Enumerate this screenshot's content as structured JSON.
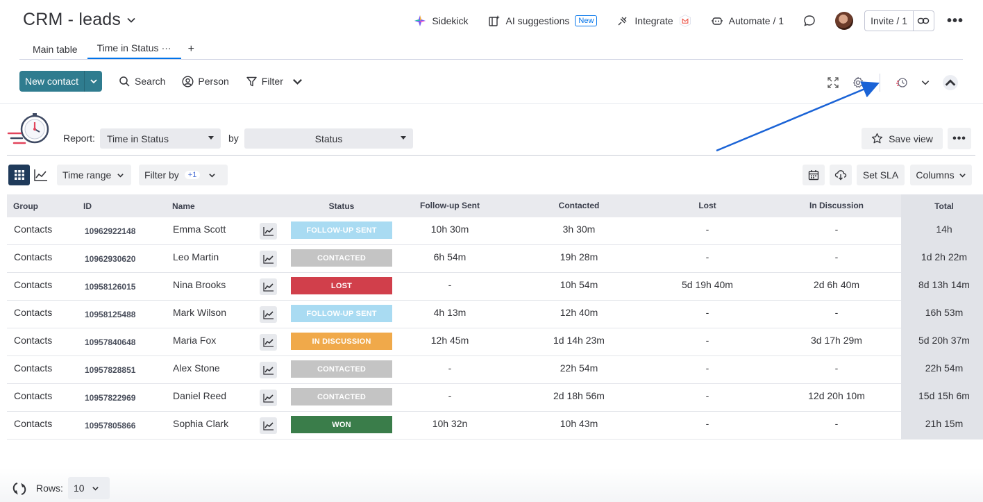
{
  "board": {
    "title": "CRM - leads"
  },
  "header": {
    "sidekick": "Sidekick",
    "ai_suggestions": "AI suggestions",
    "ai_badge": "New",
    "integrate": "Integrate",
    "automate": "Automate / 1",
    "invite": "Invite / 1"
  },
  "tabs": [
    {
      "label": "Main table"
    },
    {
      "label": "Time in Status",
      "dots": "···"
    }
  ],
  "tab_add": "+",
  "toolbar": {
    "new_contact": "New contact",
    "search": "Search",
    "person": "Person",
    "filter": "Filter"
  },
  "report": {
    "label": "Report:",
    "report_value": "Time in Status",
    "by_label": "by",
    "by_value": "Status",
    "save_view": "Save view"
  },
  "controls": {
    "time_range": "Time range",
    "filter_by": "Filter by",
    "filter_badge": "+1",
    "set_sla": "Set SLA",
    "columns": "Columns"
  },
  "table": {
    "columns": [
      "Group",
      "ID",
      "Name",
      "Status",
      "Follow-up Sent",
      "Contacted",
      "Lost",
      "In Discussion",
      "Total"
    ],
    "rows": [
      {
        "group": "Contacts",
        "id": "10962922148",
        "name": "Emma Scott",
        "status": "FOLLOW-UP SENT",
        "status_color": "#a9dbf2",
        "followup": "10h 30m",
        "contacted": "3h 30m",
        "lost": "-",
        "discussion": "-",
        "total": "14h"
      },
      {
        "group": "Contacts",
        "id": "10962930620",
        "name": "Leo Martin",
        "status": "CONTACTED",
        "status_color": "#c4c4c4",
        "followup": "6h 54m",
        "contacted": "19h 28m",
        "lost": "-",
        "discussion": "-",
        "total": "1d 2h 22m"
      },
      {
        "group": "Contacts",
        "id": "10958126015",
        "name": "Nina Brooks",
        "status": "LOST",
        "status_color": "#d13f4b",
        "followup": "-",
        "contacted": "10h 54m",
        "lost": "5d 19h 40m",
        "discussion": "2d 6h 40m",
        "total": "8d 13h 14m"
      },
      {
        "group": "Contacts",
        "id": "10958125488",
        "name": "Mark Wilson",
        "status": "FOLLOW-UP SENT",
        "status_color": "#a9dbf2",
        "followup": "4h 13m",
        "contacted": "12h 40m",
        "lost": "-",
        "discussion": "-",
        "total": "16h 53m"
      },
      {
        "group": "Contacts",
        "id": "10957840648",
        "name": "Maria Fox",
        "status": "IN DISCUSSION",
        "status_color": "#f0a94a",
        "followup": "12h 45m",
        "contacted": "1d 14h 23m",
        "lost": "-",
        "discussion": "3d 17h 29m",
        "total": "5d 20h 37m"
      },
      {
        "group": "Contacts",
        "id": "10957828851",
        "name": "Alex Stone",
        "status": "CONTACTED",
        "status_color": "#c4c4c4",
        "followup": "-",
        "contacted": "22h 54m",
        "lost": "-",
        "discussion": "-",
        "total": "22h 54m"
      },
      {
        "group": "Contacts",
        "id": "10957822969",
        "name": "Daniel Reed",
        "status": "CONTACTED",
        "status_color": "#c4c4c4",
        "followup": "-",
        "contacted": "2d 18h 56m",
        "lost": "-",
        "discussion": "12d 20h 10m",
        "total": "15d 15h 6m"
      },
      {
        "group": "Contacts",
        "id": "10957805866",
        "name": "Sophia Clark",
        "status": "WON",
        "status_color": "#3a7d4a",
        "followup": "10h 32n",
        "contacted": "10h 43m",
        "lost": "-",
        "discussion": "-",
        "total": "21h 15m"
      }
    ]
  },
  "footer": {
    "rows_label": "Rows:",
    "rows_value": "10"
  },
  "colors": {
    "accent": "#0073ea",
    "new_contact_bg": "#2f7c8f",
    "annotation_arrow": "#1a63d6"
  }
}
